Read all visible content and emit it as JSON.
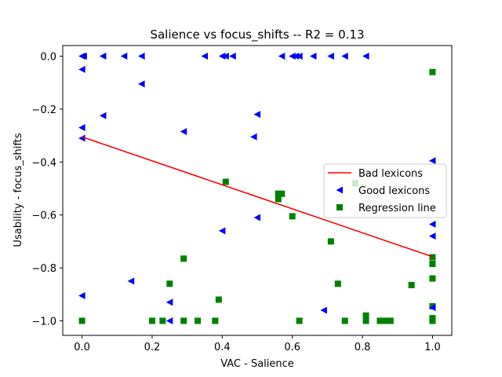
{
  "chart_data": {
    "type": "scatter",
    "title": "Salience  vs  focus_shifts -- R2 = 0.13",
    "xlabel": "VAC - Salience",
    "ylabel": "Usability - focus_shifts",
    "xlim": [
      -0.055,
      1.055
    ],
    "ylim": [
      -1.055,
      0.04
    ],
    "xticks": [
      0.0,
      0.2,
      0.4,
      0.6,
      0.8,
      1.0
    ],
    "xtick_labels": [
      "0.0",
      "0.2",
      "0.4",
      "0.6",
      "0.8",
      "1.0"
    ],
    "yticks": [
      0.0,
      -0.2,
      -0.4,
      -0.6,
      -0.8,
      -1.0
    ],
    "ytick_labels": [
      "0.0",
      "−0.2",
      "−0.4",
      "−0.6",
      "−0.8",
      "−1.0"
    ],
    "legend_position": "center-right",
    "series": [
      {
        "name": "Bad lexicons",
        "kind": "line",
        "color": "#ff0000",
        "x": [
          0.0,
          1.0
        ],
        "y": [
          -0.305,
          -0.758
        ]
      },
      {
        "name": "Good lexicons",
        "kind": "scatter",
        "marker": "triangle-left",
        "color": "#0000ff",
        "x": [
          0.0,
          0.005,
          0.06,
          0.12,
          0.17,
          0.35,
          0.4,
          0.41,
          0.43,
          0.57,
          0.6,
          0.61,
          0.62,
          0.66,
          0.71,
          0.75,
          0.81,
          0.0,
          0.0,
          0.0,
          0.06,
          0.17,
          0.29,
          0.49,
          0.5,
          1.0,
          0.4,
          0.5,
          1.0,
          1.0,
          0.14,
          0.25,
          0.25,
          0.69,
          1.0,
          0.0
        ],
        "y": [
          0.0,
          0.0,
          0.0,
          0.0,
          0.0,
          0.0,
          0.0,
          0.0,
          0.0,
          0.0,
          0.0,
          0.0,
          0.0,
          0.0,
          0.0,
          0.0,
          0.0,
          -0.05,
          -0.27,
          -0.31,
          -0.225,
          -0.105,
          -0.285,
          -0.305,
          -0.22,
          -0.395,
          -0.66,
          -0.61,
          -0.635,
          -0.68,
          -0.85,
          -0.93,
          -1.0,
          -0.96,
          -0.95,
          -0.905
        ]
      },
      {
        "name": "Regression line",
        "kind": "scatter",
        "marker": "square",
        "color": "#008000",
        "x": [
          0.0,
          0.2,
          0.23,
          0.25,
          0.29,
          0.29,
          0.33,
          0.38,
          0.39,
          0.41,
          0.56,
          0.56,
          0.57,
          0.56,
          0.6,
          0.62,
          0.71,
          0.73,
          0.75,
          0.78,
          0.81,
          0.81,
          0.85,
          0.86,
          0.87,
          0.88,
          0.94,
          1.0,
          1.0,
          1.0,
          1.0,
          1.0,
          1.0,
          1.0,
          1.0
        ],
        "y": [
          -1.0,
          -1.0,
          -1.0,
          -0.86,
          -0.765,
          -1.0,
          -1.0,
          -1.0,
          -0.92,
          -0.475,
          -0.52,
          -0.54,
          -0.52,
          -0.52,
          -0.605,
          -1.0,
          -0.7,
          -0.86,
          -1.0,
          -0.48,
          -0.98,
          -1.0,
          -1.0,
          -1.0,
          -1.0,
          -1.0,
          -0.865,
          -0.06,
          -0.76,
          -0.785,
          -0.84,
          -0.945,
          -0.99,
          -1.0,
          -1.0
        ]
      }
    ]
  }
}
